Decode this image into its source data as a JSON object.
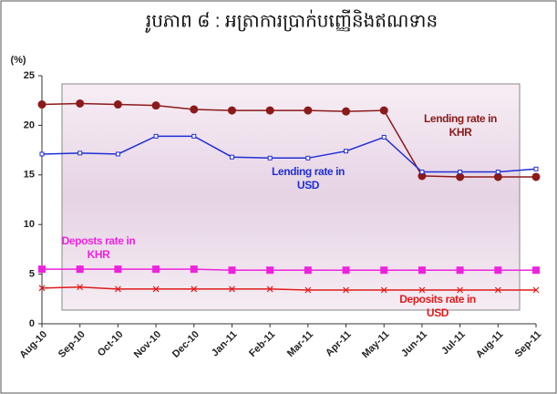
{
  "chart_data": {
    "type": "line",
    "title": "រូបភាព ៨ : អត្រាការប្រាក់បញ្ញើនិងឥណទាន",
    "y_label": "(%)",
    "categories": [
      "Aug-10",
      "Sep-10",
      "Oct-10",
      "Nov-10",
      "Dec-10",
      "Jan-11",
      "Feb-11",
      "Mar-11",
      "Apr-11",
      "May-11",
      "Jun-11",
      "Jul-11",
      "Aug-11",
      "Sep-11"
    ],
    "ylim": [
      0,
      25
    ],
    "yticks": [
      0,
      5,
      10,
      15,
      20,
      25
    ],
    "grid": false,
    "series": [
      {
        "name": "Lending rate in KHR",
        "color": "#8b1a1a",
        "marker": "circle",
        "values": [
          22.1,
          22.2,
          22.1,
          22.0,
          21.6,
          21.5,
          21.5,
          21.5,
          21.4,
          21.5,
          14.9,
          14.8,
          14.8,
          14.8
        ]
      },
      {
        "name": "Lending rate in USD",
        "color": "#1f2fd6",
        "marker": "small-square",
        "values": [
          17.1,
          17.2,
          17.1,
          18.9,
          18.9,
          16.8,
          16.7,
          16.7,
          17.4,
          18.8,
          15.3,
          15.3,
          15.3,
          15.6
        ]
      },
      {
        "name": "Deposts rate in KHR",
        "color": "#ee22dd",
        "marker": "square",
        "values": [
          5.5,
          5.5,
          5.5,
          5.5,
          5.5,
          5.4,
          5.4,
          5.4,
          5.4,
          5.4,
          5.4,
          5.4,
          5.4,
          5.4
        ]
      },
      {
        "name": "Deposits rate in USD",
        "color": "#e01b1b",
        "marker": "cross",
        "values": [
          3.6,
          3.7,
          3.5,
          3.5,
          3.5,
          3.5,
          3.5,
          3.4,
          3.4,
          3.4,
          3.4,
          3.4,
          3.4,
          3.4
        ]
      }
    ]
  }
}
